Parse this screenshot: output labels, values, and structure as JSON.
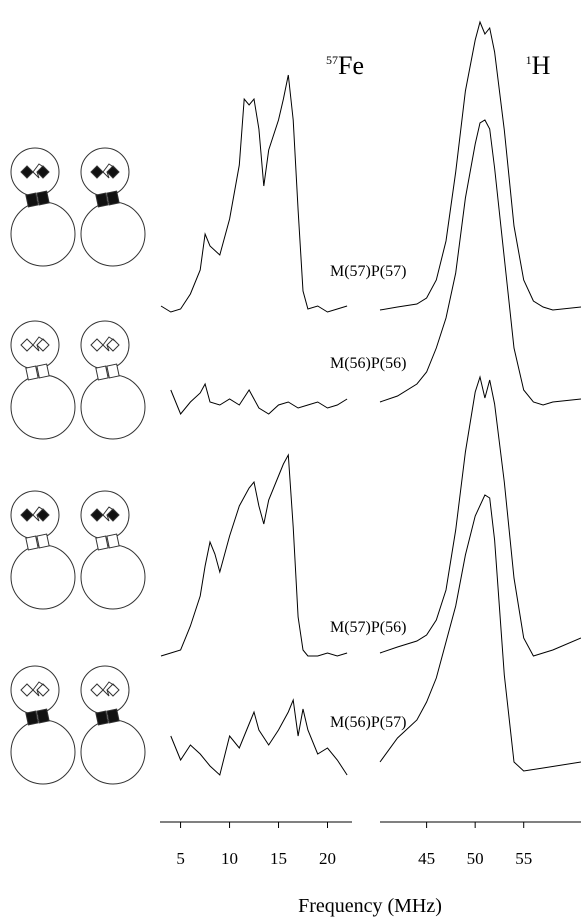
{
  "figure": {
    "xlabel": "Frequency (MHz)"
  },
  "chart_data": [
    {
      "type": "line",
      "title_mass": "57",
      "title": "Fe",
      "xlim": [
        2.9,
        22.5
      ],
      "xticks": [
        5,
        10,
        15,
        20
      ],
      "ylim": [
        0,
        100
      ],
      "series": [
        {
          "name": "M(57)P(57)",
          "color": "#000000",
          "x": [
            3,
            4,
            5,
            6,
            7,
            7.5,
            8,
            9,
            10,
            11,
            11.5,
            12,
            12.5,
            13,
            13.5,
            14,
            15,
            15.5,
            16,
            16.5,
            17,
            17.5,
            18,
            19,
            20,
            21,
            22
          ],
          "values": [
            4,
            2,
            3,
            8,
            16,
            28,
            24,
            21,
            33,
            51,
            73,
            71,
            73,
            63,
            44,
            56,
            66,
            73,
            81,
            66,
            36,
            9,
            3,
            4,
            2,
            3,
            4
          ]
        },
        {
          "name": "M(56)P(56)",
          "color": "#000000",
          "x": [
            4,
            5,
            6,
            7,
            7.5,
            8,
            9,
            10,
            11,
            12,
            13,
            14,
            15,
            16,
            17,
            18,
            19,
            20,
            21,
            22
          ],
          "values": [
            10,
            2,
            6,
            9,
            12,
            6,
            5,
            7,
            5,
            10,
            4,
            2,
            5,
            6,
            4,
            5,
            6,
            4,
            5,
            7
          ]
        },
        {
          "name": "M(57)P(56)",
          "color": "#000000",
          "x": [
            3,
            4,
            5,
            6,
            7,
            7.5,
            8,
            8.5,
            9,
            10,
            11,
            12,
            12.5,
            13,
            13.5,
            14,
            15,
            15.5,
            16,
            16.5,
            17,
            17.5,
            18,
            19,
            20,
            21,
            22
          ],
          "values": [
            2,
            3,
            4,
            12,
            22,
            32,
            40,
            36,
            30,
            42,
            52,
            58,
            60,
            52,
            46,
            54,
            62,
            66,
            69,
            45,
            15,
            4,
            2,
            2,
            3,
            2,
            3
          ]
        },
        {
          "name": "M(56)P(57)",
          "color": "#000000",
          "x": [
            4,
            5,
            6,
            7,
            8,
            9,
            10,
            11,
            12,
            12.5,
            13,
            14,
            15,
            16,
            16.5,
            17,
            17.5,
            18,
            19,
            20,
            21,
            22
          ],
          "values": [
            18,
            10,
            15,
            12,
            8,
            5,
            18,
            14,
            22,
            26,
            20,
            15,
            20,
            26,
            30,
            18,
            27,
            20,
            12,
            14,
            10,
            5
          ]
        }
      ]
    },
    {
      "type": "line",
      "title_mass": "1",
      "title": "H",
      "xlim": [
        40.2,
        60.9
      ],
      "xticks": [
        45,
        50,
        55
      ],
      "ylim": [
        0,
        100
      ],
      "series": [
        {
          "color": "#000000",
          "x": [
            40.2,
            42,
            44,
            45,
            46,
            47,
            48,
            49,
            50,
            50.5,
            51,
            51.5,
            52,
            53,
            54,
            55,
            56,
            57,
            58,
            60.9
          ],
          "values": [
            2,
            3,
            4,
            6,
            12,
            25,
            48,
            75,
            92,
            98,
            94,
            96,
            88,
            62,
            30,
            12,
            5,
            3,
            2,
            3
          ]
        },
        {
          "color": "#000000",
          "x": [
            40.2,
            42,
            44,
            45,
            46,
            47,
            48,
            49,
            50,
            50.5,
            51,
            51.5,
            52,
            53,
            54,
            55,
            56,
            57,
            58,
            60.9
          ],
          "values": [
            2,
            4,
            8,
            12,
            20,
            30,
            45,
            70,
            88,
            95,
            96,
            93,
            80,
            50,
            20,
            6,
            2,
            1,
            2,
            3
          ]
        },
        {
          "color": "#000000",
          "x": [
            40.2,
            42,
            44,
            45,
            46,
            47,
            48,
            49,
            50,
            50.5,
            51,
            51.5,
            52,
            53,
            54,
            55,
            56,
            57,
            58,
            60.9
          ],
          "values": [
            3,
            5,
            7,
            9,
            14,
            24,
            44,
            70,
            90,
            95,
            88,
            94,
            86,
            60,
            28,
            8,
            2,
            3,
            4,
            8
          ]
        },
        {
          "color": "#000000",
          "x": [
            40.2,
            42,
            44,
            45,
            46,
            47,
            48,
            49,
            50,
            51,
            51.5,
            52,
            53,
            54,
            55,
            57,
            60.9
          ],
          "values": [
            6,
            14,
            20,
            26,
            34,
            46,
            58,
            75,
            88,
            95,
            94,
            80,
            35,
            6,
            3,
            4,
            6
          ]
        }
      ]
    }
  ]
}
